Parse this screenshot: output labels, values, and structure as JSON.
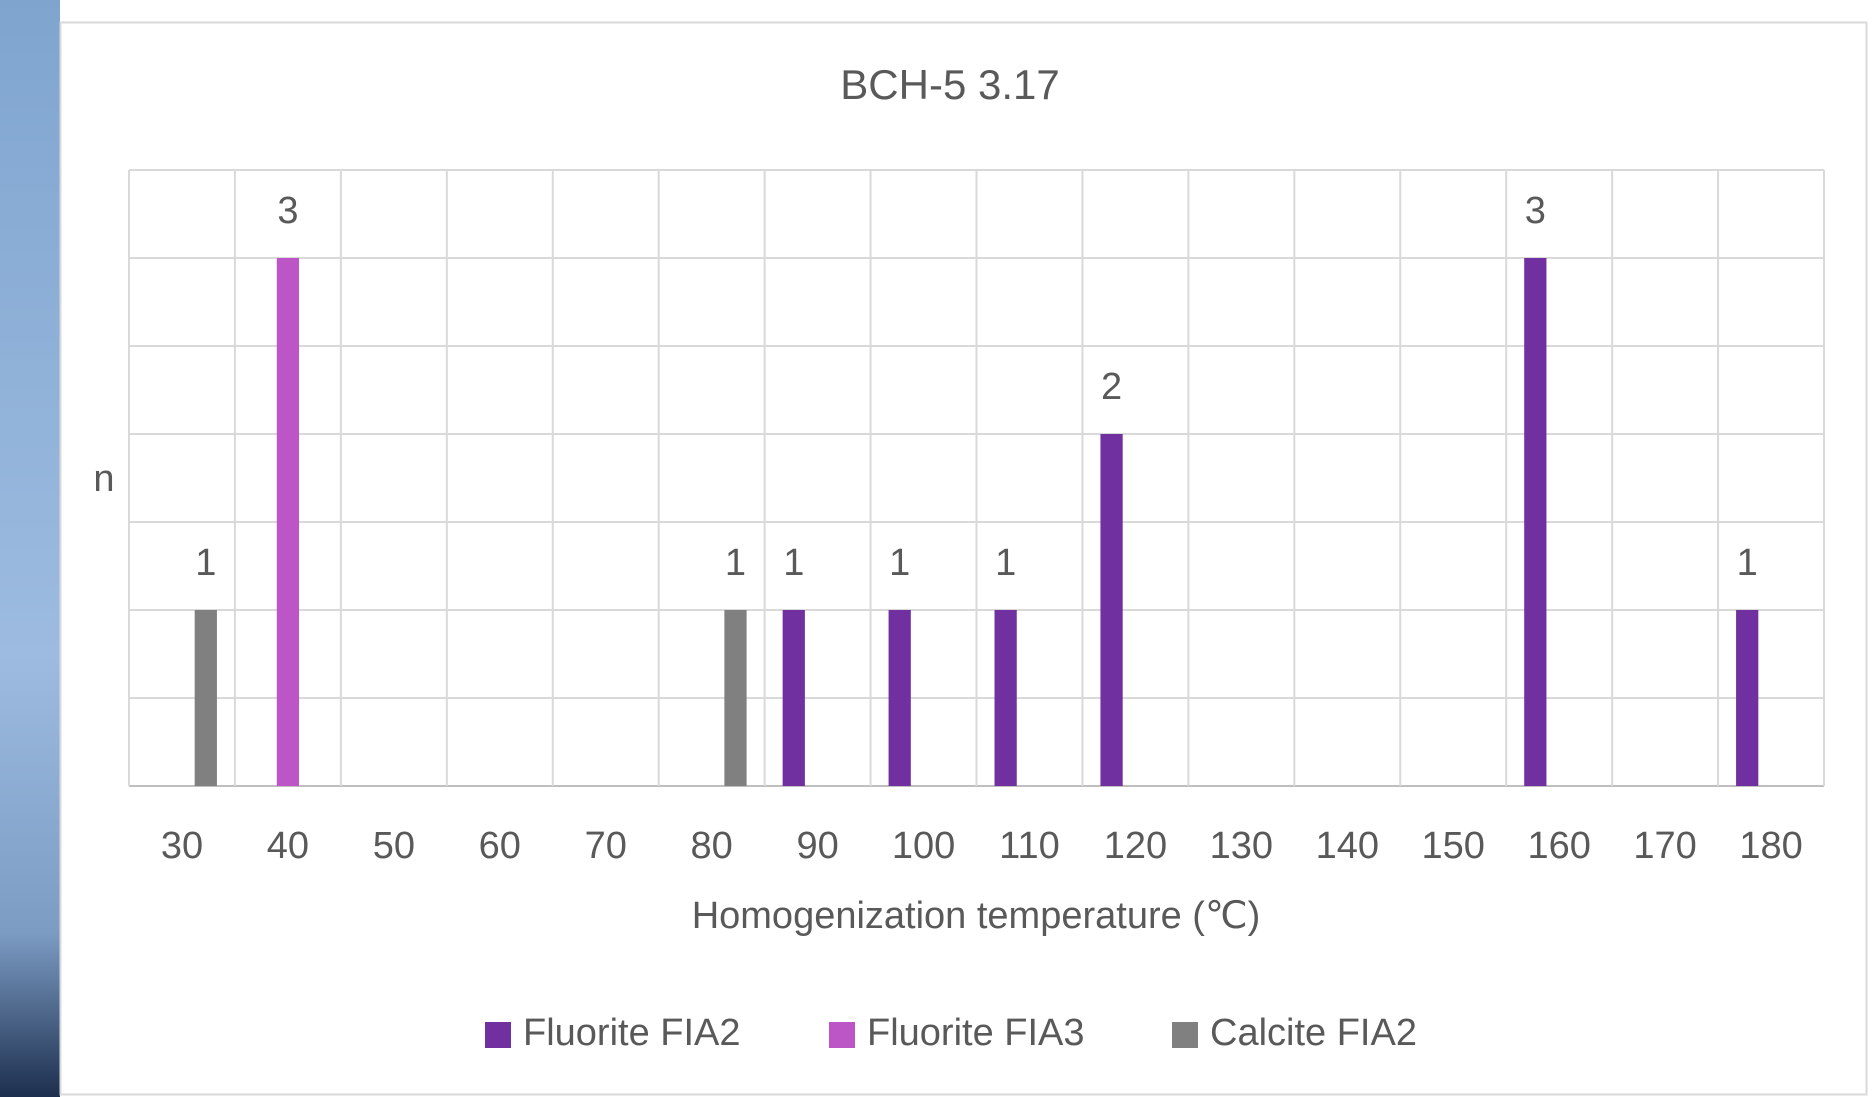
{
  "chart_data": {
    "type": "bar",
    "title": "BCH-5 3.17",
    "x_label": "Homogenization temperature (℃)",
    "y_label": "n",
    "categories": [
      "30",
      "40",
      "50",
      "60",
      "70",
      "80",
      "90",
      "100",
      "110",
      "120",
      "130",
      "140",
      "150",
      "160",
      "170",
      "180"
    ],
    "series": [
      {
        "name": "Fluorite FIA2",
        "color": "#7030a0",
        "values": [
          null,
          null,
          null,
          null,
          null,
          null,
          1,
          1,
          1,
          2,
          null,
          null,
          null,
          3,
          null,
          1
        ]
      },
      {
        "name": "Fluorite FIA3",
        "color": "#bc55c6",
        "values": [
          null,
          3,
          null,
          null,
          null,
          null,
          null,
          null,
          null,
          null,
          null,
          null,
          null,
          null,
          null,
          null
        ]
      },
      {
        "name": "Calcite FIA2",
        "color": "#808080",
        "values": [
          1,
          null,
          null,
          null,
          null,
          1,
          null,
          null,
          null,
          null,
          null,
          null,
          null,
          null,
          null,
          null
        ]
      }
    ],
    "ylim": [
      0,
      3.5
    ],
    "yticks": [
      0,
      0.5,
      1,
      1.5,
      2,
      2.5,
      3,
      3.5
    ],
    "grid": true,
    "legend": "bottom"
  }
}
